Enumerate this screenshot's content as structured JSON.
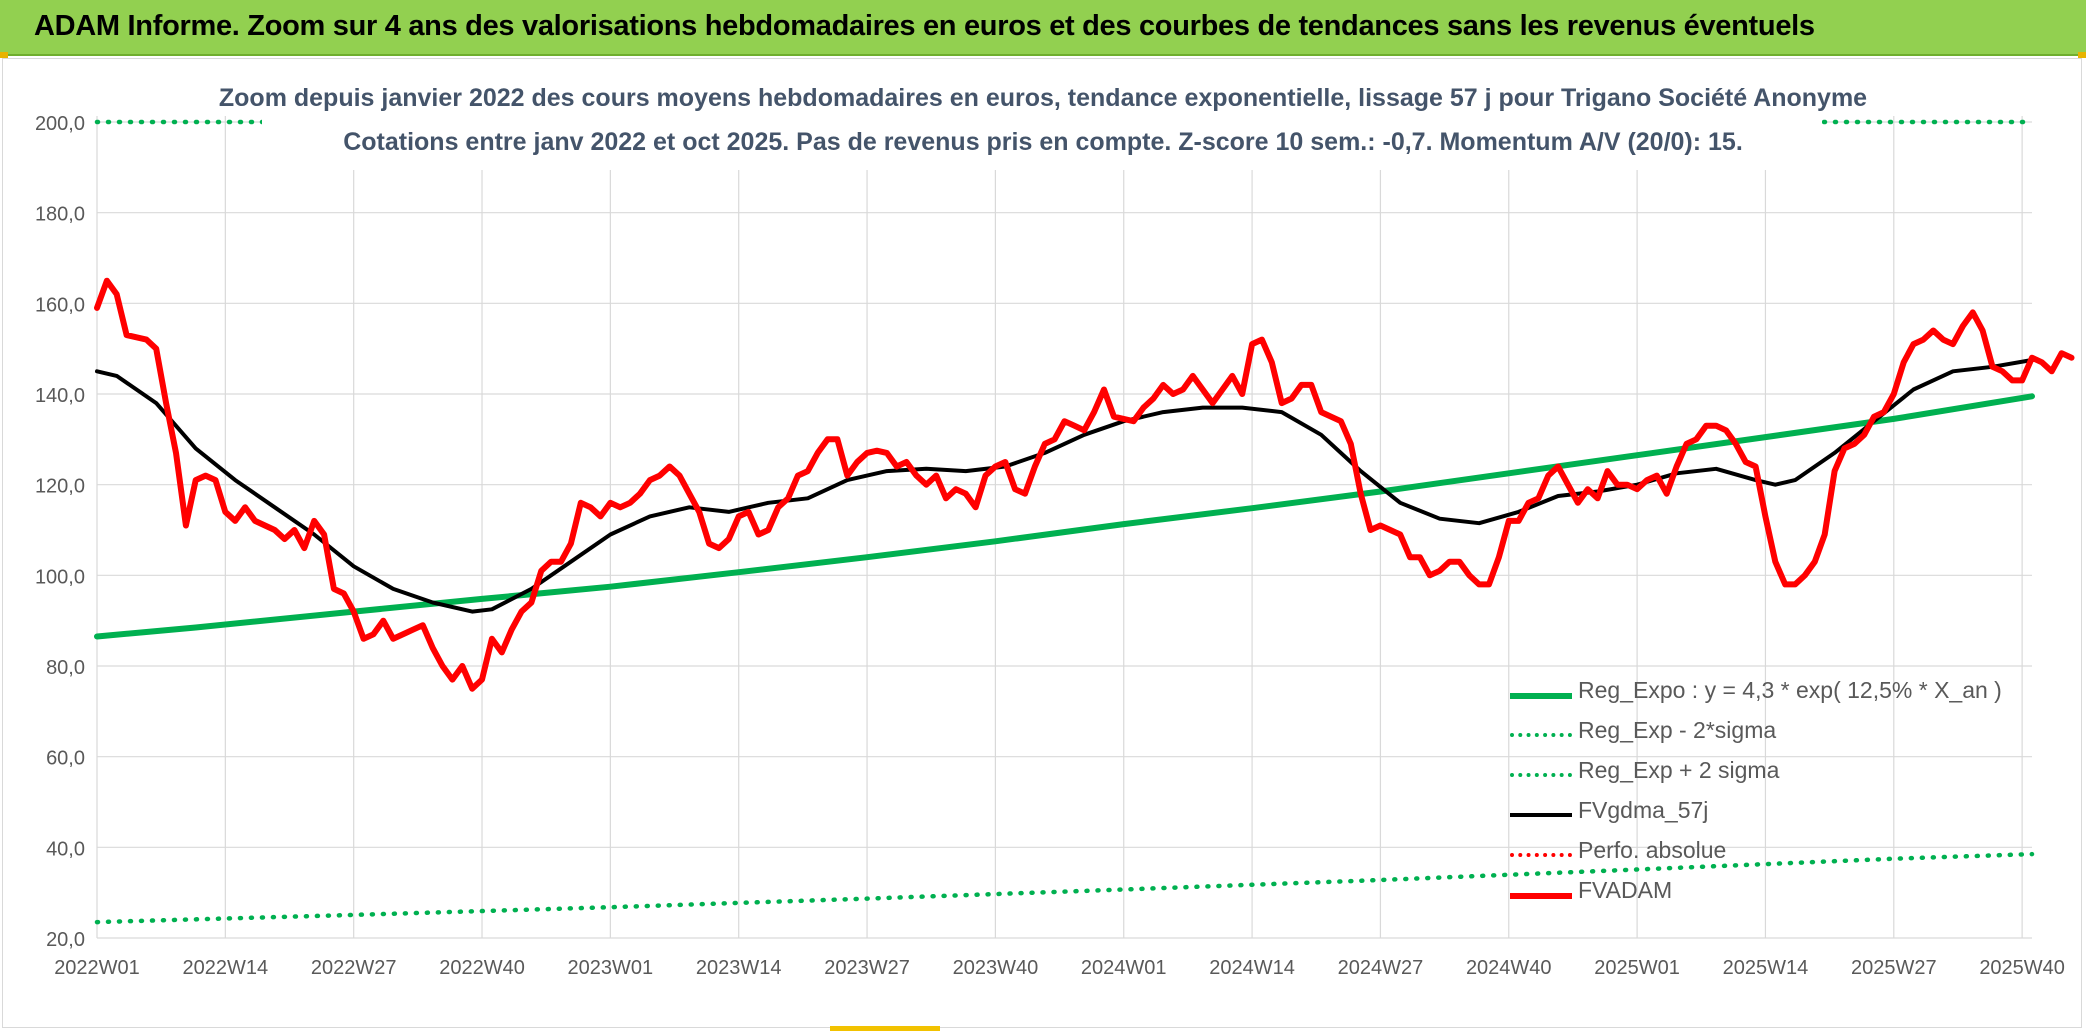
{
  "header": {
    "title": "ADAM Informe. Zoom sur 4 ans des valorisations hebdomadaires en euros et des courbes de tendances sans les revenus éventuels"
  },
  "colors": {
    "banner": "#92d050",
    "reg_expo": "#00b050",
    "fvgdma": "#000000",
    "fvadam": "#ff0000",
    "perfo": "#ff0000",
    "grid": "#d9d9d9",
    "axis_text": "#595959",
    "subtitle_text": "#44546a"
  },
  "chart_data": {
    "type": "line",
    "title_lines": [
      "Zoom depuis janvier 2022 des cours moyens hebdomadaires en euros, tendance exponentielle, lissage 57 j pour Trigano Société Anonyme",
      "Cotations entre janv 2022 et oct 2025. Pas de revenus pris en compte. Z-score 10 sem.: -0,7. Momentum A/V (20/0): 15."
    ],
    "x_range": [
      0,
      196
    ],
    "x_ticks": [
      {
        "week": 0,
        "label": "2022W01"
      },
      {
        "week": 13,
        "label": "2022W14"
      },
      {
        "week": 26,
        "label": "2022W27"
      },
      {
        "week": 39,
        "label": "2022W40"
      },
      {
        "week": 52,
        "label": "2023W01"
      },
      {
        "week": 65,
        "label": "2023W14"
      },
      {
        "week": 78,
        "label": "2023W27"
      },
      {
        "week": 91,
        "label": "2023W40"
      },
      {
        "week": 104,
        "label": "2024W01"
      },
      {
        "week": 117,
        "label": "2024W14"
      },
      {
        "week": 130,
        "label": "2024W27"
      },
      {
        "week": 143,
        "label": "2024W40"
      },
      {
        "week": 156,
        "label": "2025W01"
      },
      {
        "week": 169,
        "label": "2025W14"
      },
      {
        "week": 182,
        "label": "2025W27"
      },
      {
        "week": 195,
        "label": "2025W40"
      }
    ],
    "ylim": [
      20,
      200
    ],
    "y_ticks": [
      "20,0",
      "40,0",
      "60,0",
      "80,0",
      "100,0",
      "120,0",
      "140,0",
      "160,0",
      "180,0",
      "200,0"
    ],
    "grid": true,
    "legend_position": "bottom-right",
    "series": [
      {
        "name": "Reg_Expo : y = 4,3 * exp( 12,5% *  X_an )",
        "style": "solid-thick",
        "color": "#00b050",
        "points": [
          [
            0,
            86.5
          ],
          [
            10,
            88.5
          ],
          [
            26,
            92
          ],
          [
            39,
            94.8
          ],
          [
            52,
            97.5
          ],
          [
            65,
            100.7
          ],
          [
            78,
            104
          ],
          [
            91,
            107.5
          ],
          [
            104,
            111.3
          ],
          [
            117,
            114.8
          ],
          [
            130,
            118.5
          ],
          [
            143,
            122.5
          ],
          [
            156,
            126.5
          ],
          [
            169,
            130.5
          ],
          [
            182,
            134.5
          ],
          [
            196,
            139.5
          ]
        ]
      },
      {
        "name": "Reg_Exp - 2*sigma",
        "style": "dotted",
        "color": "#00b050",
        "points": [
          [
            0,
            23.5
          ],
          [
            26,
            25.1
          ],
          [
            52,
            26.8
          ],
          [
            78,
            28.7
          ],
          [
            104,
            30.7
          ],
          [
            130,
            32.8
          ],
          [
            156,
            35.1
          ],
          [
            182,
            37.5
          ],
          [
            196,
            38.5
          ]
        ]
      },
      {
        "name": "Reg_Exp + 2 sigma",
        "style": "dotted",
        "color": "#00b050",
        "points": [
          [
            0,
            200
          ],
          [
            196,
            200
          ]
        ]
      },
      {
        "name": "FVgdma_57j",
        "style": "solid",
        "color": "#000000",
        "points": [
          [
            0,
            145
          ],
          [
            2,
            144
          ],
          [
            6,
            138
          ],
          [
            10,
            128
          ],
          [
            14,
            121
          ],
          [
            18,
            115
          ],
          [
            22,
            109
          ],
          [
            26,
            102
          ],
          [
            30,
            97
          ],
          [
            34,
            94
          ],
          [
            38,
            92
          ],
          [
            40,
            92.5
          ],
          [
            44,
            97
          ],
          [
            48,
            103
          ],
          [
            52,
            109
          ],
          [
            56,
            113
          ],
          [
            60,
            115
          ],
          [
            64,
            114
          ],
          [
            68,
            116
          ],
          [
            72,
            117
          ],
          [
            76,
            121
          ],
          [
            80,
            123
          ],
          [
            84,
            123.5
          ],
          [
            88,
            123
          ],
          [
            92,
            124
          ],
          [
            96,
            127
          ],
          [
            100,
            131
          ],
          [
            104,
            134
          ],
          [
            108,
            136
          ],
          [
            112,
            137
          ],
          [
            116,
            137
          ],
          [
            120,
            136
          ],
          [
            124,
            131
          ],
          [
            128,
            123
          ],
          [
            132,
            116
          ],
          [
            136,
            112.5
          ],
          [
            140,
            111.5
          ],
          [
            144,
            114
          ],
          [
            148,
            117.5
          ],
          [
            152,
            118.5
          ],
          [
            156,
            120
          ],
          [
            160,
            122.5
          ],
          [
            164,
            123.5
          ],
          [
            168,
            121
          ],
          [
            170,
            120
          ],
          [
            172,
            121
          ],
          [
            176,
            127
          ],
          [
            180,
            134
          ],
          [
            184,
            141
          ],
          [
            188,
            145
          ],
          [
            192,
            146
          ],
          [
            196,
            147.5
          ]
        ]
      },
      {
        "name": "Perfo. absolue",
        "style": "dotted",
        "color": "#ff0000",
        "points": []
      },
      {
        "name": "FVADAM",
        "style": "solid-thick",
        "color": "#ff0000",
        "points": [
          [
            0,
            159
          ],
          [
            1,
            165
          ],
          [
            2,
            162
          ],
          [
            3,
            153
          ],
          [
            5,
            152
          ],
          [
            6,
            150
          ],
          [
            7,
            138
          ],
          [
            8,
            127
          ],
          [
            9,
            111
          ],
          [
            10,
            121
          ],
          [
            11,
            122
          ],
          [
            12,
            121
          ],
          [
            13,
            114
          ],
          [
            14,
            112
          ],
          [
            15,
            115
          ],
          [
            16,
            112
          ],
          [
            18,
            110
          ],
          [
            19,
            108
          ],
          [
            20,
            110
          ],
          [
            21,
            106
          ],
          [
            22,
            112
          ],
          [
            23,
            109
          ],
          [
            24,
            97
          ],
          [
            25,
            96
          ],
          [
            26,
            92
          ],
          [
            27,
            86
          ],
          [
            28,
            87
          ],
          [
            29,
            90
          ],
          [
            30,
            86
          ],
          [
            32,
            88
          ],
          [
            33,
            89
          ],
          [
            34,
            84
          ],
          [
            35,
            80
          ],
          [
            36,
            77
          ],
          [
            37,
            80
          ],
          [
            38,
            75
          ],
          [
            39,
            77
          ],
          [
            40,
            86
          ],
          [
            41,
            83
          ],
          [
            42,
            88
          ],
          [
            43,
            92
          ],
          [
            44,
            94
          ],
          [
            45,
            101
          ],
          [
            46,
            103
          ],
          [
            47,
            103
          ],
          [
            48,
            107
          ],
          [
            49,
            116
          ],
          [
            50,
            115
          ],
          [
            51,
            113
          ],
          [
            52,
            116
          ],
          [
            53,
            115
          ],
          [
            54,
            116
          ],
          [
            55,
            118
          ],
          [
            56,
            121
          ],
          [
            57,
            122
          ],
          [
            58,
            124
          ],
          [
            59,
            122
          ],
          [
            60,
            118
          ],
          [
            61,
            114
          ],
          [
            62,
            107
          ],
          [
            63,
            106
          ],
          [
            64,
            108
          ],
          [
            65,
            113
          ],
          [
            66,
            114
          ],
          [
            67,
            109
          ],
          [
            68,
            110
          ],
          [
            69,
            115
          ],
          [
            70,
            117
          ],
          [
            71,
            122
          ],
          [
            72,
            123
          ],
          [
            73,
            127
          ],
          [
            74,
            130
          ],
          [
            75,
            130
          ],
          [
            76,
            122
          ],
          [
            77,
            125
          ],
          [
            78,
            127
          ],
          [
            79,
            127.5
          ],
          [
            80,
            127
          ],
          [
            81,
            124
          ],
          [
            82,
            125
          ],
          [
            83,
            122
          ],
          [
            84,
            120
          ],
          [
            85,
            122
          ],
          [
            86,
            117
          ],
          [
            87,
            119
          ],
          [
            88,
            118
          ],
          [
            89,
            115
          ],
          [
            90,
            122
          ],
          [
            91,
            124
          ],
          [
            92,
            125
          ],
          [
            93,
            119
          ],
          [
            94,
            118
          ],
          [
            95,
            124
          ],
          [
            96,
            129
          ],
          [
            97,
            130
          ],
          [
            98,
            134
          ],
          [
            99,
            133
          ],
          [
            100,
            132
          ],
          [
            101,
            136
          ],
          [
            102,
            141
          ],
          [
            103,
            135
          ],
          [
            104,
            134.5
          ],
          [
            105,
            134
          ],
          [
            106,
            137
          ],
          [
            107,
            139
          ],
          [
            108,
            142
          ],
          [
            109,
            140
          ],
          [
            110,
            141
          ],
          [
            111,
            144
          ],
          [
            112,
            141
          ],
          [
            113,
            138
          ],
          [
            114,
            141
          ],
          [
            115,
            144
          ],
          [
            116,
            140
          ],
          [
            117,
            151
          ],
          [
            118,
            152
          ],
          [
            119,
            147
          ],
          [
            120,
            138
          ],
          [
            121,
            139
          ],
          [
            122,
            142
          ],
          [
            123,
            142
          ],
          [
            124,
            136
          ],
          [
            125,
            135
          ],
          [
            126,
            134
          ],
          [
            127,
            129
          ],
          [
            128,
            118
          ],
          [
            129,
            110
          ],
          [
            130,
            111
          ],
          [
            131,
            110
          ],
          [
            132,
            109
          ],
          [
            133,
            104
          ],
          [
            134,
            104
          ],
          [
            135,
            100
          ],
          [
            136,
            101
          ],
          [
            137,
            103
          ],
          [
            138,
            103
          ],
          [
            139,
            100
          ],
          [
            140,
            98
          ],
          [
            141,
            98
          ],
          [
            142,
            104
          ],
          [
            143,
            112
          ],
          [
            144,
            112
          ],
          [
            145,
            116
          ],
          [
            146,
            117
          ],
          [
            147,
            122
          ],
          [
            148,
            124
          ],
          [
            149,
            120
          ],
          [
            150,
            116
          ],
          [
            151,
            119
          ],
          [
            152,
            117
          ],
          [
            153,
            123
          ],
          [
            154,
            120
          ],
          [
            155,
            120
          ],
          [
            156,
            119
          ],
          [
            157,
            121
          ],
          [
            158,
            122
          ],
          [
            159,
            118
          ],
          [
            160,
            124
          ],
          [
            161,
            129
          ],
          [
            162,
            130
          ],
          [
            163,
            133
          ],
          [
            164,
            133
          ],
          [
            165,
            132
          ],
          [
            166,
            129
          ],
          [
            167,
            125
          ],
          [
            168,
            124
          ],
          [
            169,
            113
          ],
          [
            170,
            103
          ],
          [
            171,
            98
          ],
          [
            172,
            98
          ],
          [
            173,
            100
          ],
          [
            174,
            103
          ],
          [
            175,
            109
          ],
          [
            176,
            123
          ],
          [
            177,
            128
          ],
          [
            178,
            129
          ],
          [
            179,
            131
          ],
          [
            180,
            135
          ],
          [
            181,
            136
          ],
          [
            182,
            140
          ],
          [
            183,
            147
          ],
          [
            184,
            151
          ],
          [
            185,
            152
          ],
          [
            186,
            154
          ],
          [
            187,
            152
          ],
          [
            188,
            151
          ],
          [
            189,
            155
          ],
          [
            190,
            158
          ],
          [
            191,
            154
          ],
          [
            192,
            146
          ],
          [
            193,
            145
          ],
          [
            194,
            143
          ],
          [
            195,
            143
          ],
          [
            196,
            148
          ],
          [
            197,
            147
          ],
          [
            198,
            145
          ],
          [
            199,
            149
          ],
          [
            200,
            148
          ]
        ]
      }
    ]
  }
}
